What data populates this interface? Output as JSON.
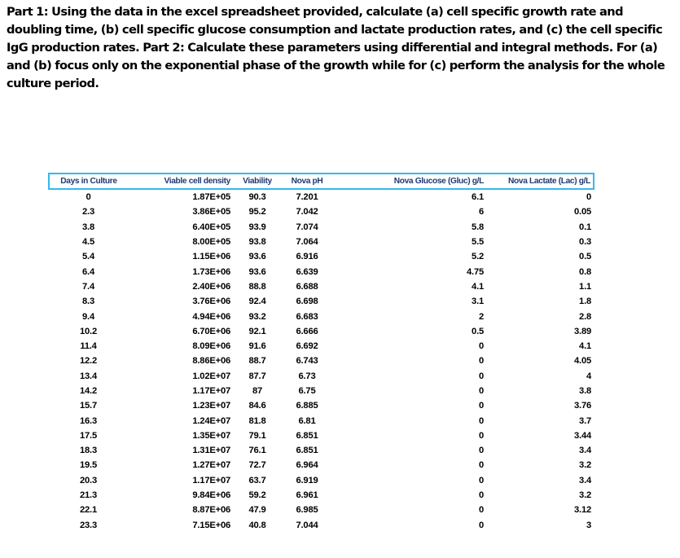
{
  "question": {
    "text": "Part 1: Using the data in the excel spreadsheet provided, calculate (a) cell specific growth rate and doubling time, (b) cell specific glucose consumption and lactate production rates, and (c) the cell specific IgG production rates. Part 2: Calculate these parameters using differential and integral methods. For (a) and (b) focus only on the exponential phase of the growth while for (c) perform the analysis for the whole culture period."
  },
  "table": {
    "headers": [
      "Days in Culture",
      "Viable cell density",
      "Viability",
      "Nova pH",
      "Nova Glucose (Gluc) g/L",
      "Nova Lactate (Lac) g/L"
    ],
    "rows": [
      [
        "0",
        "1.87E+05",
        "90.3",
        "7.201",
        "6.1",
        "0"
      ],
      [
        "2.3",
        "3.86E+05",
        "95.2",
        "7.042",
        "6",
        "0.05"
      ],
      [
        "3.8",
        "6.40E+05",
        "93.9",
        "7.074",
        "5.8",
        "0.1"
      ],
      [
        "4.5",
        "8.00E+05",
        "93.8",
        "7.064",
        "5.5",
        "0.3"
      ],
      [
        "5.4",
        "1.15E+06",
        "93.6",
        "6.916",
        "5.2",
        "0.5"
      ],
      [
        "6.4",
        "1.73E+06",
        "93.6",
        "6.639",
        "4.75",
        "0.8"
      ],
      [
        "7.4",
        "2.40E+06",
        "88.8",
        "6.688",
        "4.1",
        "1.1"
      ],
      [
        "8.3",
        "3.76E+06",
        "92.4",
        "6.698",
        "3.1",
        "1.8"
      ],
      [
        "9.4",
        "4.94E+06",
        "93.2",
        "6.683",
        "2",
        "2.8"
      ],
      [
        "10.2",
        "6.70E+06",
        "92.1",
        "6.666",
        "0.5",
        "3.89"
      ],
      [
        "11.4",
        "8.09E+06",
        "91.6",
        "6.692",
        "0",
        "4.1"
      ],
      [
        "12.2",
        "8.86E+06",
        "88.7",
        "6.743",
        "0",
        "4.05"
      ],
      [
        "13.4",
        "1.02E+07",
        "87.7",
        "6.73",
        "0",
        "4"
      ],
      [
        "14.2",
        "1.17E+07",
        "87",
        "6.75",
        "0",
        "3.8"
      ],
      [
        "15.7",
        "1.23E+07",
        "84.6",
        "6.885",
        "0",
        "3.76"
      ],
      [
        "16.3",
        "1.24E+07",
        "81.8",
        "6.81",
        "0",
        "3.7"
      ],
      [
        "17.5",
        "1.35E+07",
        "79.1",
        "6.851",
        "0",
        "3.44"
      ],
      [
        "18.3",
        "1.31E+07",
        "76.1",
        "6.851",
        "0",
        "3.4"
      ],
      [
        "19.5",
        "1.27E+07",
        "72.7",
        "6.964",
        "0",
        "3.2"
      ],
      [
        "20.3",
        "1.17E+07",
        "63.7",
        "6.919",
        "0",
        "3.4"
      ],
      [
        "21.3",
        "9.84E+06",
        "59.2",
        "6.961",
        "0",
        "3.2"
      ],
      [
        "22.1",
        "8.87E+06",
        "47.9",
        "6.985",
        "0",
        "3.12"
      ],
      [
        "23.3",
        "7.15E+06",
        "40.8",
        "7.044",
        "0",
        "3"
      ]
    ]
  }
}
